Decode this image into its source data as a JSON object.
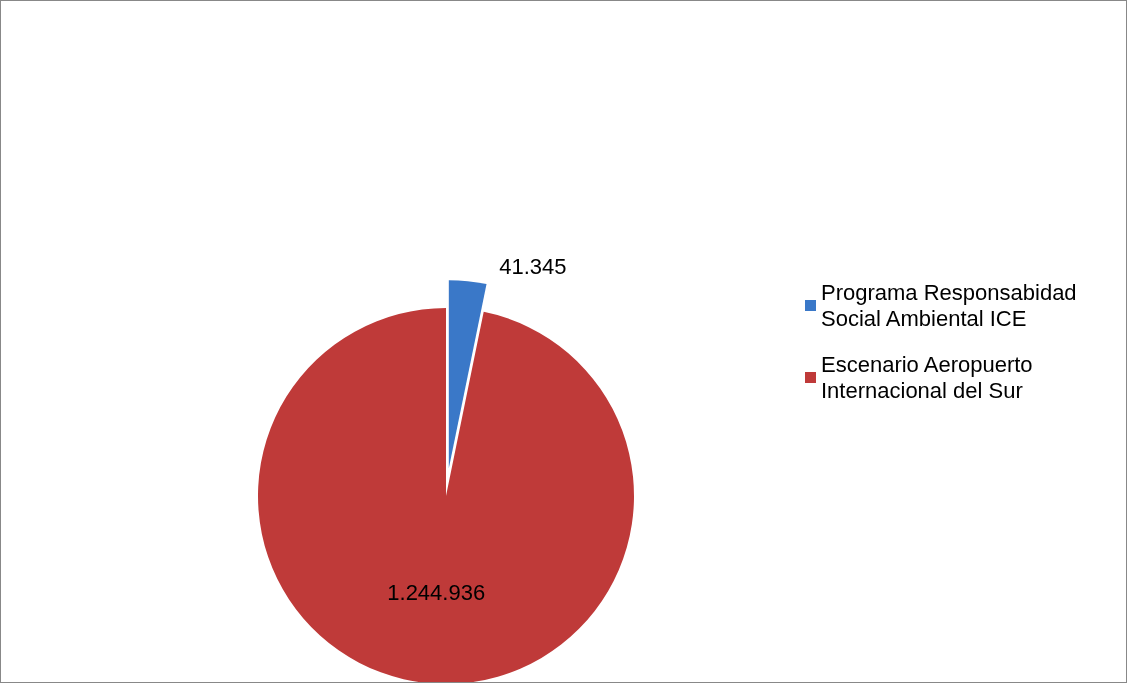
{
  "chart_data": {
    "type": "pie",
    "categories": [
      "Programa Responsabidad Social Ambiental ICE",
      "Escenario Aeropuerto Internacional del Sur"
    ],
    "values": [
      41345,
      1244936
    ],
    "value_labels": [
      "41.345",
      "1.244.936"
    ],
    "colors": [
      "#3a78c8",
      "#bf3a39"
    ],
    "legend": "right"
  }
}
